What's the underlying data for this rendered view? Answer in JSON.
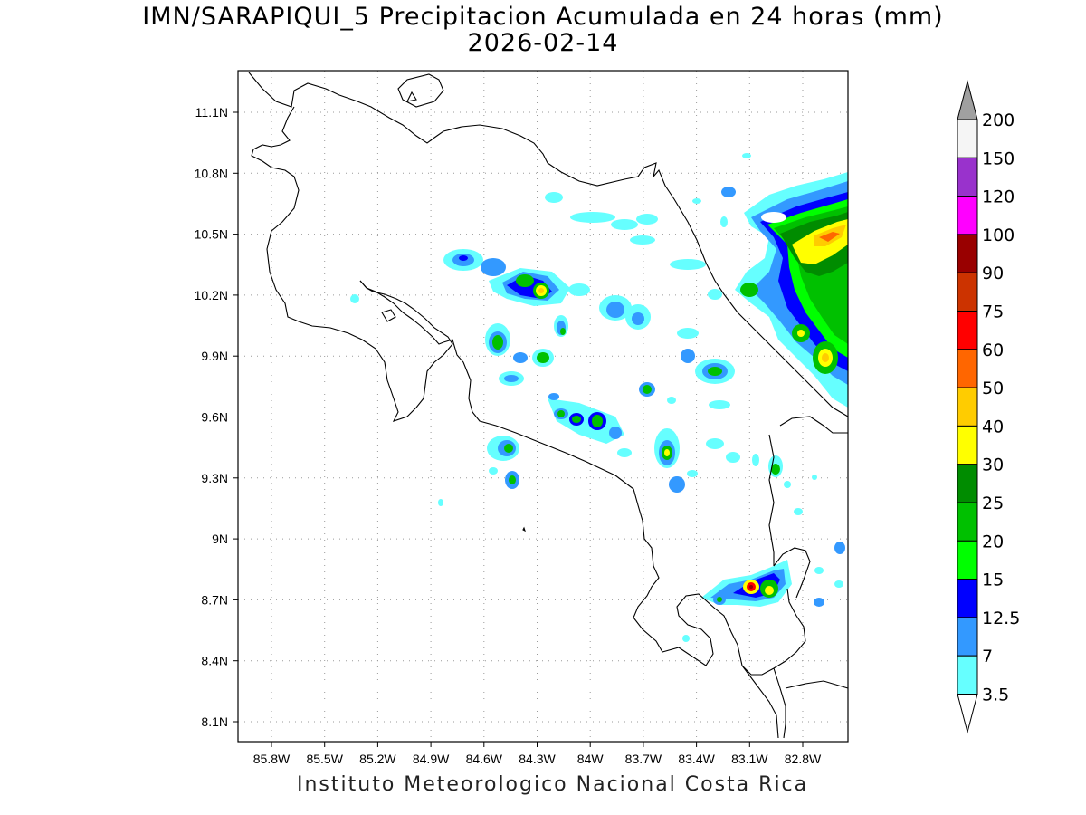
{
  "title": {
    "line1": "IMN/SARAPIQUI_5 Precipitacion Acumulada en 24 horas (mm)",
    "line2": "2026-02-14"
  },
  "footer": "Instituto Meteorologico Nacional Costa Rica",
  "map": {
    "lon_ticks": [
      "85.8W",
      "85.5W",
      "85.2W",
      "84.9W",
      "84.6W",
      "84.3W",
      "84W",
      "83.7W",
      "83.4W",
      "83.1W",
      "82.8W"
    ],
    "lat_ticks": [
      "11.1N",
      "10.8N",
      "10.5N",
      "10.2N",
      "9.9N",
      "9.6N",
      "9.3N",
      "9N",
      "8.7N",
      "8.4N",
      "8.1N"
    ],
    "grid": "dotted"
  },
  "colorbar": {
    "labels": [
      "200",
      "150",
      "120",
      "100",
      "90",
      "75",
      "60",
      "50",
      "40",
      "30",
      "25",
      "20",
      "15",
      "12.5",
      "7",
      "3.5"
    ],
    "colors": [
      "#a0a0a0",
      "#f5f5f5",
      "#9932cc",
      "#ff00ff",
      "#990000",
      "#cc3300",
      "#ff0000",
      "#ff6600",
      "#ffcc00",
      "#ffff00",
      "#008c00",
      "#00c000",
      "#00ff00",
      "#0000ff",
      "#3399ff",
      "#66ffff",
      "#ffffff"
    ]
  }
}
